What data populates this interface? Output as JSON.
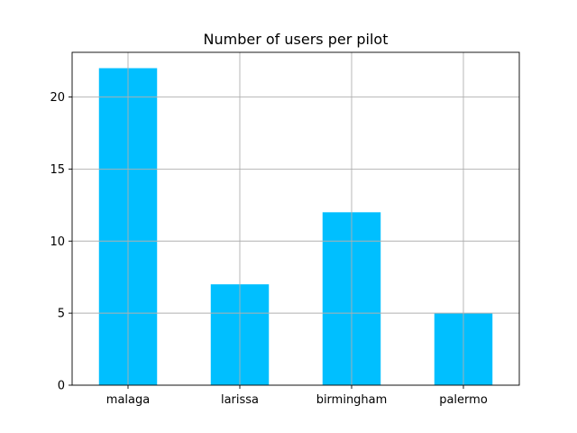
{
  "chart_data": {
    "type": "bar",
    "title": "Number of users per pilot",
    "xlabel": "",
    "ylabel": "",
    "categories": [
      "malaga",
      "larissa",
      "birmingham",
      "palermo"
    ],
    "values": [
      22,
      7,
      12,
      5
    ],
    "ylim": [
      0,
      23.1
    ],
    "yticks": [
      0,
      5,
      10,
      15,
      20
    ],
    "grid": true,
    "legend": "none",
    "bar_color": "#00bfff"
  }
}
